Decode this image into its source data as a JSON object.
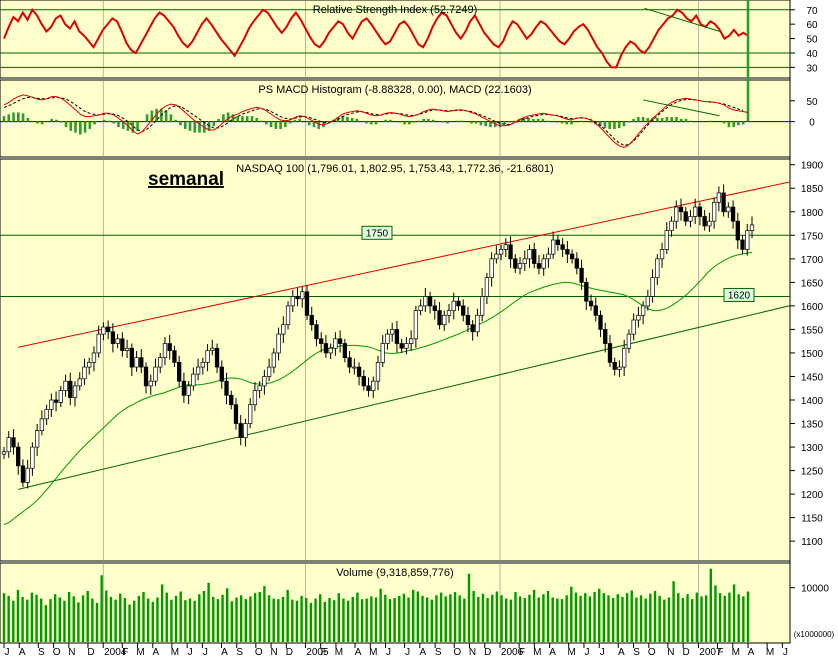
{
  "colors": {
    "panel_bg": "#ffffcc",
    "axis_bg": "#ffffff",
    "price_up": "#ffffff",
    "price_down": "#000000",
    "rsi_line": "#dd0000",
    "macd_line": "#dd0000",
    "signal_line": "#000000",
    "histogram": "#339933",
    "moving_average": "#009900",
    "upper_trend": "#dd0000",
    "lower_trend": "#006600",
    "hline": "#006600",
    "volume": "#009900",
    "label_box_bg": "#ddffdd",
    "label_box_border": "#006600"
  },
  "chart_data": [
    {
      "type": "line",
      "panel": "rsi",
      "title": "Relative Strength Index (52.7249)",
      "yticks": [
        70,
        60,
        50,
        40,
        30
      ],
      "ylim": [
        24,
        74
      ],
      "reference_levels": [
        70,
        40,
        30
      ],
      "series": [
        {
          "values": [
            50,
            58,
            65,
            62,
            68,
            63,
            70,
            66,
            60,
            55,
            58,
            64,
            66,
            60,
            57,
            62,
            55,
            52,
            48,
            44,
            50,
            56,
            60,
            64,
            62,
            55,
            47,
            42,
            40,
            46,
            52,
            58,
            64,
            68,
            66,
            62,
            58,
            52,
            47,
            44,
            48,
            54,
            60,
            64,
            60,
            55,
            50,
            46,
            42,
            38,
            44,
            50,
            57,
            62,
            66,
            70,
            68,
            63,
            58,
            54,
            58,
            64,
            68,
            63,
            57,
            51,
            46,
            44,
            48,
            54,
            58,
            62,
            60,
            54,
            50,
            56,
            62,
            64,
            60,
            55,
            50,
            46,
            48,
            54,
            60,
            62,
            58,
            52,
            46,
            44,
            50,
            58,
            64,
            68,
            66,
            60,
            54,
            50,
            55,
            62,
            66,
            60,
            54,
            50,
            46,
            44,
            48,
            56,
            62,
            60,
            55,
            50,
            53,
            58,
            62,
            60,
            56,
            52,
            48,
            46,
            50,
            55,
            58,
            60,
            56,
            50,
            44,
            40,
            34,
            30,
            30,
            38,
            44,
            48,
            46,
            42,
            40,
            44,
            50,
            56,
            60,
            64,
            66,
            70,
            68,
            64,
            62,
            66,
            60,
            58,
            62,
            60,
            56,
            50,
            52,
            56,
            52,
            54,
            52
          ]
        }
      ],
      "trendlines": [
        {
          "x": [
            136,
            152
          ],
          "y": [
            71,
            55
          ]
        }
      ]
    },
    {
      "type": "line",
      "panel": "macd",
      "title": "PS MACD Histogram (-8.88328, 0.00), MACD (22.1603)",
      "yticks": [
        50,
        0
      ],
      "ylim": [
        -80,
        95
      ],
      "series": [
        {
          "values": [
            40,
            46,
            54,
            60,
            64,
            62,
            58,
            54,
            52,
            55,
            60,
            60,
            56,
            48,
            38,
            28,
            18,
            12,
            12,
            14,
            16,
            20,
            20,
            16,
            8,
            0,
            -10,
            -22,
            -30,
            -24,
            -10,
            4,
            18,
            30,
            38,
            42,
            40,
            32,
            22,
            12,
            2,
            -6,
            -14,
            -20,
            -20,
            -12,
            -2,
            8,
            14,
            18,
            24,
            28,
            32,
            34,
            32,
            26,
            18,
            10,
            4,
            2,
            4,
            10,
            14,
            12,
            6,
            0,
            -6,
            -8,
            -4,
            2,
            10,
            18,
            22,
            24,
            26,
            24,
            20,
            16,
            14,
            16,
            20,
            22,
            20,
            18,
            14,
            12,
            14,
            18,
            24,
            28,
            30,
            28,
            26,
            24,
            26,
            28,
            28,
            26,
            22,
            18,
            12,
            6,
            0,
            -6,
            -10,
            -10,
            -8,
            -2,
            4,
            10,
            14,
            16,
            18,
            20,
            18,
            16,
            14,
            10,
            6,
            4,
            8,
            10,
            8,
            4,
            -4,
            -14,
            -26,
            -38,
            -50,
            -58,
            -62,
            -56,
            -44,
            -30,
            -16,
            -4,
            8,
            18,
            28,
            38,
            46,
            52,
            54,
            56,
            54,
            52,
            50,
            48,
            48,
            46,
            44,
            40,
            32,
            28,
            26,
            24,
            22
          ]
        },
        {
          "values": [
            34,
            38,
            44,
            50,
            55,
            58,
            58,
            56,
            55,
            55,
            57,
            58,
            57,
            54,
            48,
            40,
            32,
            24,
            20,
            17,
            16,
            18,
            19,
            18,
            14,
            8,
            0,
            -10,
            -20,
            -24,
            -18,
            -8,
            4,
            16,
            26,
            34,
            38,
            36,
            30,
            22,
            14,
            6,
            -2,
            -10,
            -15,
            -15,
            -10,
            -2,
            6,
            12,
            18,
            22,
            26,
            30,
            31,
            29,
            24,
            18,
            12,
            8,
            6,
            8,
            11,
            12,
            10,
            6,
            2,
            -2,
            -3,
            0,
            5,
            12,
            17,
            20,
            23,
            24,
            22,
            19,
            17,
            16,
            18,
            20,
            20,
            19,
            17,
            15,
            15,
            17,
            21,
            25,
            28,
            28,
            27,
            26,
            26,
            27,
            27,
            26,
            24,
            20,
            16,
            11,
            6,
            0,
            -4,
            -7,
            -7,
            -3,
            1,
            6,
            10,
            13,
            15,
            17,
            17,
            16,
            15,
            12,
            9,
            7,
            8,
            9,
            8,
            5,
            -1,
            -9,
            -19,
            -30,
            -42,
            -51,
            -57,
            -55,
            -47,
            -35,
            -21,
            -8,
            4,
            14,
            24,
            33,
            41,
            47,
            51,
            53,
            53,
            52,
            50,
            48,
            47,
            46,
            44,
            42,
            38,
            34,
            30,
            27
          ]
        }
      ],
      "trendlines": [
        {
          "x": [
            134,
            150
          ],
          "y": [
            52,
            14
          ]
        }
      ]
    },
    {
      "type": "candlestick",
      "panel": "price",
      "title": "NASDAQ 100 (1,796.01, 1,802.95, 1,753.43, 1,772.36, -21.6801)",
      "heading": "semanal",
      "yticks": [
        1900,
        1850,
        1800,
        1750,
        1700,
        1650,
        1600,
        1550,
        1500,
        1450,
        1400,
        1350,
        1300,
        1250,
        1200,
        1150,
        1100
      ],
      "ylim": [
        1060,
        1910
      ],
      "closes": [
        1290,
        1320,
        1300,
        1260,
        1225,
        1255,
        1300,
        1335,
        1360,
        1380,
        1400,
        1395,
        1420,
        1440,
        1405,
        1430,
        1445,
        1470,
        1480,
        1500,
        1540,
        1555,
        1545,
        1520,
        1530,
        1505,
        1510,
        1470,
        1490,
        1470,
        1430,
        1440,
        1470,
        1490,
        1520,
        1505,
        1480,
        1440,
        1410,
        1430,
        1455,
        1470,
        1480,
        1505,
        1510,
        1470,
        1440,
        1410,
        1390,
        1350,
        1320,
        1350,
        1390,
        1420,
        1430,
        1450,
        1470,
        1500,
        1540,
        1560,
        1600,
        1620,
        1615,
        1630,
        1580,
        1560,
        1530,
        1520,
        1500,
        1510,
        1530,
        1520,
        1490,
        1470,
        1470,
        1450,
        1430,
        1420,
        1440,
        1480,
        1520,
        1540,
        1550,
        1520,
        1510,
        1520,
        1530,
        1590,
        1600,
        1620,
        1600,
        1590,
        1560,
        1580,
        1590,
        1610,
        1600,
        1580,
        1560,
        1545,
        1580,
        1620,
        1660,
        1700,
        1710,
        1720,
        1730,
        1700,
        1680,
        1690,
        1700,
        1720,
        1690,
        1680,
        1700,
        1710,
        1740,
        1730,
        1720,
        1710,
        1700,
        1680,
        1650,
        1610,
        1600,
        1580,
        1550,
        1520,
        1480,
        1465,
        1470,
        1510,
        1540,
        1570,
        1580,
        1600,
        1620,
        1660,
        1700,
        1720,
        1760,
        1780,
        1810,
        1800,
        1780,
        1790,
        1810,
        1790,
        1770,
        1780,
        1820,
        1840,
        1800,
        1810,
        1780,
        1740,
        1720,
        1760,
        1772
      ],
      "moving_average_values": [
        1135,
        1140,
        1148,
        1156,
        1164,
        1172,
        1180,
        1190,
        1202,
        1214,
        1227,
        1240,
        1253,
        1265,
        1277,
        1289,
        1300,
        1310,
        1320,
        1330,
        1340,
        1350,
        1360,
        1370,
        1378,
        1385,
        1390,
        1396,
        1401,
        1405,
        1409,
        1412,
        1414,
        1418,
        1422,
        1426,
        1430,
        1432,
        1432,
        1432,
        1433,
        1435,
        1437,
        1440,
        1443,
        1446,
        1447,
        1446,
        1444,
        1440,
        1436,
        1434,
        1434,
        1435,
        1437,
        1441,
        1446,
        1452,
        1459,
        1467,
        1475,
        1484,
        1492,
        1499,
        1505,
        1509,
        1511,
        1513,
        1515,
        1516,
        1516,
        1516,
        1515,
        1514,
        1512,
        1508,
        1504,
        1500,
        1499,
        1499,
        1501,
        1503,
        1506,
        1508,
        1511,
        1514,
        1517,
        1521,
        1525,
        1529,
        1533,
        1537,
        1541,
        1546,
        1551,
        1556,
        1561,
        1566,
        1572,
        1578,
        1585,
        1592,
        1600,
        1608,
        1615,
        1622,
        1628,
        1632,
        1636,
        1640,
        1643,
        1646,
        1648,
        1650,
        1650,
        1648,
        1645,
        1642,
        1639,
        1636,
        1634,
        1632,
        1630,
        1628,
        1626,
        1624,
        1620,
        1614,
        1607,
        1600,
        1594,
        1590,
        1590,
        1592,
        1596,
        1602,
        1609,
        1617,
        1626,
        1636,
        1647,
        1658,
        1670,
        1680,
        1688,
        1694,
        1700,
        1705,
        1708,
        1710,
        1712,
        1714
      ],
      "horizontal_levels": [
        {
          "value": 1750,
          "label": "1750"
        },
        {
          "value": 1620,
          "label": "1620"
        }
      ],
      "trendlines": [
        {
          "color": "upper",
          "x": [
            3,
            170
          ],
          "y": [
            1512,
            1872
          ]
        },
        {
          "color": "lower",
          "x": [
            3,
            170
          ],
          "y": [
            1210,
            1610
          ]
        }
      ]
    },
    {
      "type": "bar",
      "panel": "volume",
      "title": "Volume (9,318,859,776)",
      "yticks": [
        10000
      ],
      "unit_label": "(x1000000)",
      "ylim": [
        0,
        14000
      ],
      "values": [
        9000,
        8500,
        7600,
        9600,
        8300,
        7800,
        9100,
        8700,
        8000,
        6800,
        7900,
        8800,
        8200,
        7600,
        9200,
        8400,
        7300,
        8600,
        9400,
        8000,
        7200,
        12300,
        9500,
        8300,
        7800,
        8900,
        8100,
        6900,
        7600,
        8500,
        9200,
        8000,
        7400,
        8200,
        10600,
        9100,
        7800,
        8500,
        9300,
        7700,
        8000,
        7600,
        8800,
        9400,
        10900,
        8300,
        7900,
        8700,
        9900,
        7500,
        8200,
        8600,
        7900,
        8400,
        9000,
        9200,
        10300,
        8600,
        8000,
        7900,
        8300,
        9600,
        7800,
        7600,
        8500,
        8100,
        7200,
        8000,
        8800,
        7400,
        8100,
        7700,
        9000,
        8000,
        7600,
        8300,
        9100,
        7900,
        8000,
        8400,
        8200,
        9800,
        8700,
        7900,
        8100,
        8500,
        8900,
        8200,
        9600,
        9300,
        8500,
        8200,
        7800,
        8600,
        9100,
        8400,
        8800,
        9200,
        8600,
        8000,
        12600,
        9400,
        8300,
        8900,
        8100,
        8700,
        9300,
        8600,
        8000,
        7800,
        9200,
        8400,
        8100,
        8700,
        9600,
        8200,
        8800,
        9400,
        8200,
        8000,
        7900,
        8600,
        10200,
        9100,
        8500,
        9000,
        8400,
        9200,
        9800,
        9000,
        8600,
        8100,
        8800,
        8300,
        9000,
        9500,
        8200,
        8600,
        8000,
        8900,
        9400,
        8500,
        7800,
        8200,
        11200,
        9000,
        8100,
        8800,
        7900,
        9100,
        8400,
        8600,
        13500,
        10400,
        9000,
        8500,
        9100,
        10600,
        8800,
        8400,
        9300
      ]
    }
  ],
  "x_axis": {
    "labels": [
      {
        "text": "J",
        "week": 0
      },
      {
        "text": "A",
        "week": 4
      },
      {
        "text": "S",
        "week": 9
      },
      {
        "text": "O",
        "week": 13
      },
      {
        "text": "N",
        "week": 17
      },
      {
        "text": "D",
        "week": 22
      },
      {
        "text": "2004",
        "week": 26
      },
      {
        "text": "F",
        "week": 31
      },
      {
        "text": "M",
        "week": 35
      },
      {
        "text": "A",
        "week": 39
      },
      {
        "text": "M",
        "week": 44
      },
      {
        "text": "J",
        "week": 48
      },
      {
        "text": "J",
        "week": 52
      },
      {
        "text": "A",
        "week": 57
      },
      {
        "text": "S",
        "week": 61
      },
      {
        "text": "O",
        "week": 66
      },
      {
        "text": "N",
        "week": 70
      },
      {
        "text": "D",
        "week": 74
      },
      {
        "text": "2005",
        "week": 79
      },
      {
        "text": "F",
        "week": 83
      },
      {
        "text": "M",
        "week": 87
      },
      {
        "text": "A",
        "week": 92
      },
      {
        "text": "M",
        "week": 96
      },
      {
        "text": "J",
        "week": 100
      },
      {
        "text": "J",
        "week": 105
      },
      {
        "text": "A",
        "week": 109
      },
      {
        "text": "S",
        "week": 113
      },
      {
        "text": "O",
        "week": 118
      },
      {
        "text": "N",
        "week": 122
      },
      {
        "text": "D",
        "week": 126
      },
      {
        "text": "2006",
        "week": 130
      },
      {
        "text": "F",
        "week": 135
      },
      {
        "text": "M",
        "week": 139
      },
      {
        "text": "A",
        "week": 143
      },
      {
        "text": "M",
        "week": 148
      },
      {
        "text": "J",
        "week": 152
      },
      {
        "text": "J",
        "week": 156
      },
      {
        "text": "A",
        "week": 161
      },
      {
        "text": "S",
        "week": 165
      },
      {
        "text": "O",
        "week": 169
      },
      {
        "text": "N",
        "week": 174
      },
      {
        "text": "D",
        "week": 178
      },
      {
        "text": "2007",
        "week": 182
      },
      {
        "text": "F",
        "week": 187
      },
      {
        "text": "M",
        "week": 191
      },
      {
        "text": "A",
        "week": 195
      },
      {
        "text": "M",
        "week": 200
      },
      {
        "text": "J",
        "week": 204
      }
    ]
  }
}
